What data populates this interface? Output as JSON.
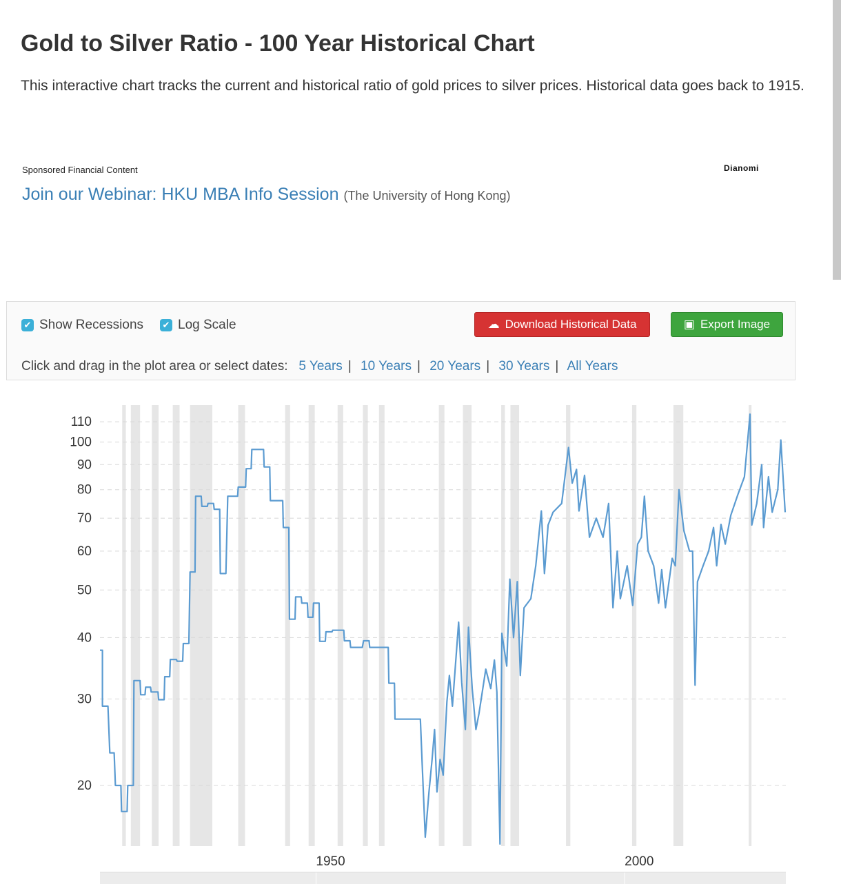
{
  "title": "Gold to Silver Ratio - 100 Year Historical Chart",
  "description": "This interactive chart tracks the current and historical ratio of gold prices to silver prices. Historical data goes back to 1915.",
  "sponsored": {
    "label": "Sponsored Financial Content",
    "logo": "Dianomi",
    "ad_link": "Join our Webinar: HKU MBA Info Session",
    "ad_source": "(The University of Hong Kong)"
  },
  "controls": {
    "show_recessions": "Show Recessions",
    "log_scale": "Log Scale",
    "download": "Download Historical Data",
    "export": "Export Image",
    "dates_prompt": "Click and drag in the plot area or select dates:",
    "ranges": [
      "5 Years",
      "10 Years",
      "20 Years",
      "30 Years",
      "All Years"
    ]
  },
  "colors": {
    "line": "#5b9bd1",
    "recession": "#e6e6e6"
  },
  "chart_data": {
    "type": "line",
    "scale": "log",
    "ylim": [
      15,
      120
    ],
    "xlim": [
      1915,
      2026
    ],
    "yticks": [
      20,
      30,
      40,
      50,
      60,
      70,
      80,
      90,
      100,
      110
    ],
    "xticks": [
      1950,
      2000
    ],
    "recessions": [
      [
        1918.6,
        1919.2
      ],
      [
        1920,
        1921.5
      ],
      [
        1923.4,
        1924.5
      ],
      [
        1926.8,
        1927.9
      ],
      [
        1929.6,
        1933.2
      ],
      [
        1937.4,
        1938.5
      ],
      [
        1945,
        1945.8
      ],
      [
        1948.8,
        1949.8
      ],
      [
        1953.5,
        1954.4
      ],
      [
        1957.6,
        1958.4
      ],
      [
        1960.2,
        1961.1
      ],
      [
        1969.9,
        1970.8
      ],
      [
        1973.8,
        1975.2
      ],
      [
        1980,
        1980.6
      ],
      [
        1981.5,
        1982.9
      ],
      [
        1990.5,
        1991.2
      ],
      [
        2001.2,
        2001.9
      ],
      [
        2007.9,
        2009.5
      ],
      [
        2020.1,
        2020.5
      ]
    ],
    "series": [
      {
        "name": "Gold to Silver Ratio",
        "points": [
          [
            1915.0,
            37.7
          ],
          [
            1915.4,
            37.7
          ],
          [
            1915.4,
            29
          ],
          [
            1916.3,
            29
          ],
          [
            1916.6,
            23.3
          ],
          [
            1917.3,
            23.3
          ],
          [
            1917.5,
            20
          ],
          [
            1918.4,
            20
          ],
          [
            1918.5,
            17.7
          ],
          [
            1919.4,
            17.7
          ],
          [
            1919.5,
            20
          ],
          [
            1920.4,
            20
          ],
          [
            1920.5,
            32.7
          ],
          [
            1921.5,
            32.7
          ],
          [
            1921.6,
            30.6
          ],
          [
            1922.3,
            30.6
          ],
          [
            1922.4,
            31.7
          ],
          [
            1923.2,
            31.7
          ],
          [
            1923.3,
            31
          ],
          [
            1924.4,
            31
          ],
          [
            1924.5,
            29.9
          ],
          [
            1925.4,
            29.9
          ],
          [
            1925.5,
            33.3
          ],
          [
            1926.3,
            33.3
          ],
          [
            1926.4,
            36.1
          ],
          [
            1927.4,
            36.1
          ],
          [
            1927.5,
            35.8
          ],
          [
            1928.4,
            35.8
          ],
          [
            1928.5,
            38.9
          ],
          [
            1929.4,
            38.9
          ],
          [
            1929.6,
            54.4
          ],
          [
            1930.4,
            54.4
          ],
          [
            1930.5,
            77.6
          ],
          [
            1931.4,
            77.6
          ],
          [
            1931.5,
            74
          ],
          [
            1932.4,
            74
          ],
          [
            1932.5,
            75
          ],
          [
            1933.4,
            75
          ],
          [
            1933.5,
            73
          ],
          [
            1934.4,
            73
          ],
          [
            1934.5,
            54
          ],
          [
            1935.4,
            54
          ],
          [
            1935.7,
            77.6
          ],
          [
            1937.3,
            77.6
          ],
          [
            1937.4,
            81
          ],
          [
            1938.6,
            81
          ],
          [
            1938.7,
            88.3
          ],
          [
            1939.5,
            88.3
          ],
          [
            1939.6,
            96.6
          ],
          [
            1941.5,
            96.6
          ],
          [
            1941.6,
            89
          ],
          [
            1942.5,
            89
          ],
          [
            1942.6,
            76
          ],
          [
            1944.6,
            76
          ],
          [
            1944.7,
            67
          ],
          [
            1945.6,
            67
          ],
          [
            1945.7,
            43.6
          ],
          [
            1946.6,
            43.6
          ],
          [
            1946.7,
            48.4
          ],
          [
            1947.6,
            48.4
          ],
          [
            1947.7,
            47
          ],
          [
            1948.6,
            47
          ],
          [
            1948.7,
            44
          ],
          [
            1949.5,
            44
          ],
          [
            1949.6,
            47
          ],
          [
            1950.5,
            47
          ],
          [
            1950.6,
            39.3
          ],
          [
            1951.5,
            39.3
          ],
          [
            1951.6,
            41.1
          ],
          [
            1952.6,
            41.1
          ],
          [
            1952.7,
            41.4
          ],
          [
            1954.5,
            41.4
          ],
          [
            1954.6,
            39.4
          ],
          [
            1955.5,
            39.4
          ],
          [
            1955.6,
            38.2
          ],
          [
            1957.5,
            38.2
          ],
          [
            1957.7,
            39.4
          ],
          [
            1958.6,
            39.4
          ],
          [
            1958.7,
            38.2
          ],
          [
            1961.7,
            38.2
          ],
          [
            1961.8,
            32.3
          ],
          [
            1962.7,
            32.3
          ],
          [
            1962.8,
            27.3
          ],
          [
            1966.9,
            27.3
          ],
          [
            1967.2,
            22
          ],
          [
            1967.7,
            15.7
          ],
          [
            1968.3,
            19.4
          ],
          [
            1968.8,
            22.6
          ],
          [
            1969.2,
            26
          ],
          [
            1969.6,
            19.4
          ],
          [
            1970.1,
            22.6
          ],
          [
            1970.6,
            21
          ],
          [
            1971.2,
            29.6
          ],
          [
            1971.6,
            33.5
          ],
          [
            1972.1,
            29
          ],
          [
            1973.1,
            43
          ],
          [
            1973.6,
            32.4
          ],
          [
            1974.2,
            26
          ],
          [
            1974.7,
            42
          ],
          [
            1975.3,
            31.5
          ],
          [
            1975.9,
            26
          ],
          [
            1976.4,
            28
          ],
          [
            1977.5,
            34.5
          ],
          [
            1978.3,
            31.5
          ],
          [
            1978.9,
            36
          ],
          [
            1979.3,
            31
          ],
          [
            1979.8,
            15.2
          ],
          [
            1980.1,
            40.8
          ],
          [
            1980.9,
            35
          ],
          [
            1981.4,
            52.6
          ],
          [
            1982.0,
            40
          ],
          [
            1982.6,
            52
          ],
          [
            1983.1,
            33.5
          ],
          [
            1983.7,
            46
          ],
          [
            1984.8,
            48
          ],
          [
            1985.6,
            56
          ],
          [
            1986.5,
            72.4
          ],
          [
            1987.0,
            54
          ],
          [
            1987.6,
            67.8
          ],
          [
            1988.4,
            72
          ],
          [
            1989.8,
            75
          ],
          [
            1990.9,
            97.5
          ],
          [
            1991.5,
            82.5
          ],
          [
            1992.2,
            88
          ],
          [
            1992.6,
            72.4
          ],
          [
            1993.5,
            85.6
          ],
          [
            1994.3,
            64
          ],
          [
            1995.4,
            70
          ],
          [
            1996.5,
            64
          ],
          [
            1997.4,
            75
          ],
          [
            1998.1,
            46
          ],
          [
            1998.8,
            60
          ],
          [
            1999.3,
            48
          ],
          [
            2000.4,
            56
          ],
          [
            2001.3,
            46.5
          ],
          [
            2002.1,
            62
          ],
          [
            2002.7,
            64
          ],
          [
            2003.2,
            77.6
          ],
          [
            2003.8,
            60
          ],
          [
            2004.7,
            56
          ],
          [
            2005.5,
            47
          ],
          [
            2006.0,
            55
          ],
          [
            2006.6,
            46
          ],
          [
            2007.7,
            58
          ],
          [
            2008.2,
            56
          ],
          [
            2008.8,
            80
          ],
          [
            2009.6,
            66
          ],
          [
            2010.5,
            60
          ],
          [
            2011.0,
            60
          ],
          [
            2011.4,
            32
          ],
          [
            2011.8,
            52
          ],
          [
            2012.7,
            56
          ],
          [
            2013.6,
            60
          ],
          [
            2014.4,
            67
          ],
          [
            2014.9,
            56
          ],
          [
            2015.6,
            68
          ],
          [
            2016.3,
            62
          ],
          [
            2017.2,
            71
          ],
          [
            2018.3,
            78
          ],
          [
            2019.4,
            85
          ],
          [
            2020.3,
            114
          ],
          [
            2020.6,
            67.8
          ],
          [
            2021.4,
            75
          ],
          [
            2022.2,
            90
          ],
          [
            2022.5,
            67
          ],
          [
            2023.3,
            85
          ],
          [
            2023.9,
            72
          ],
          [
            2024.8,
            80
          ],
          [
            2025.3,
            101
          ],
          [
            2026.0,
            72
          ]
        ]
      }
    ]
  }
}
